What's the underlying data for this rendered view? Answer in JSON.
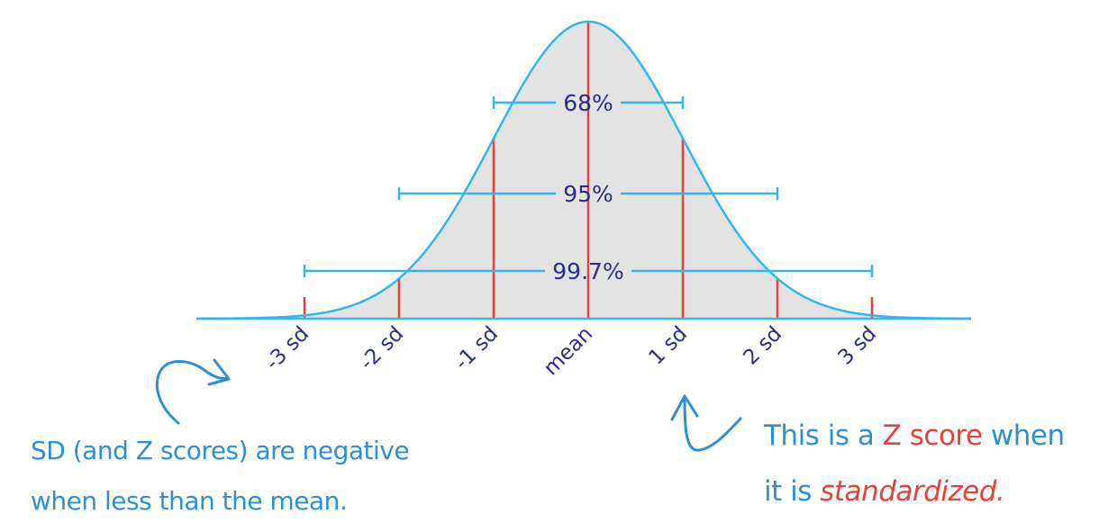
{
  "colors": {
    "curve": "#33b5f0",
    "fill": "#e3e3e3",
    "sd_lines": "#e8413a",
    "bars": "#33b5f0",
    "labels": "#2a2f8a",
    "note_blue": "#2e8fd6",
    "note_red": "#e8413a"
  },
  "intervals": [
    {
      "label": "68%",
      "from_sd": -1,
      "to_sd": 1
    },
    {
      "label": "95%",
      "from_sd": -2,
      "to_sd": 2
    },
    {
      "label": "99.7%",
      "from_sd": -3,
      "to_sd": 3
    }
  ],
  "axis_labels": [
    "-3 sd",
    "-2 sd",
    "-1 sd",
    "mean",
    "1 sd",
    "2 sd",
    "3 sd"
  ],
  "annotations": {
    "left_note_line1": "SD (and Z scores) are negative",
    "left_note_line2": "when less than the mean.",
    "right_note_prefix": "This is a ",
    "right_note_highlight": "Z score",
    "right_note_suffix": " when",
    "right_note_line2_prefix": "it is ",
    "right_note_line2_highlight": "standardized."
  }
}
